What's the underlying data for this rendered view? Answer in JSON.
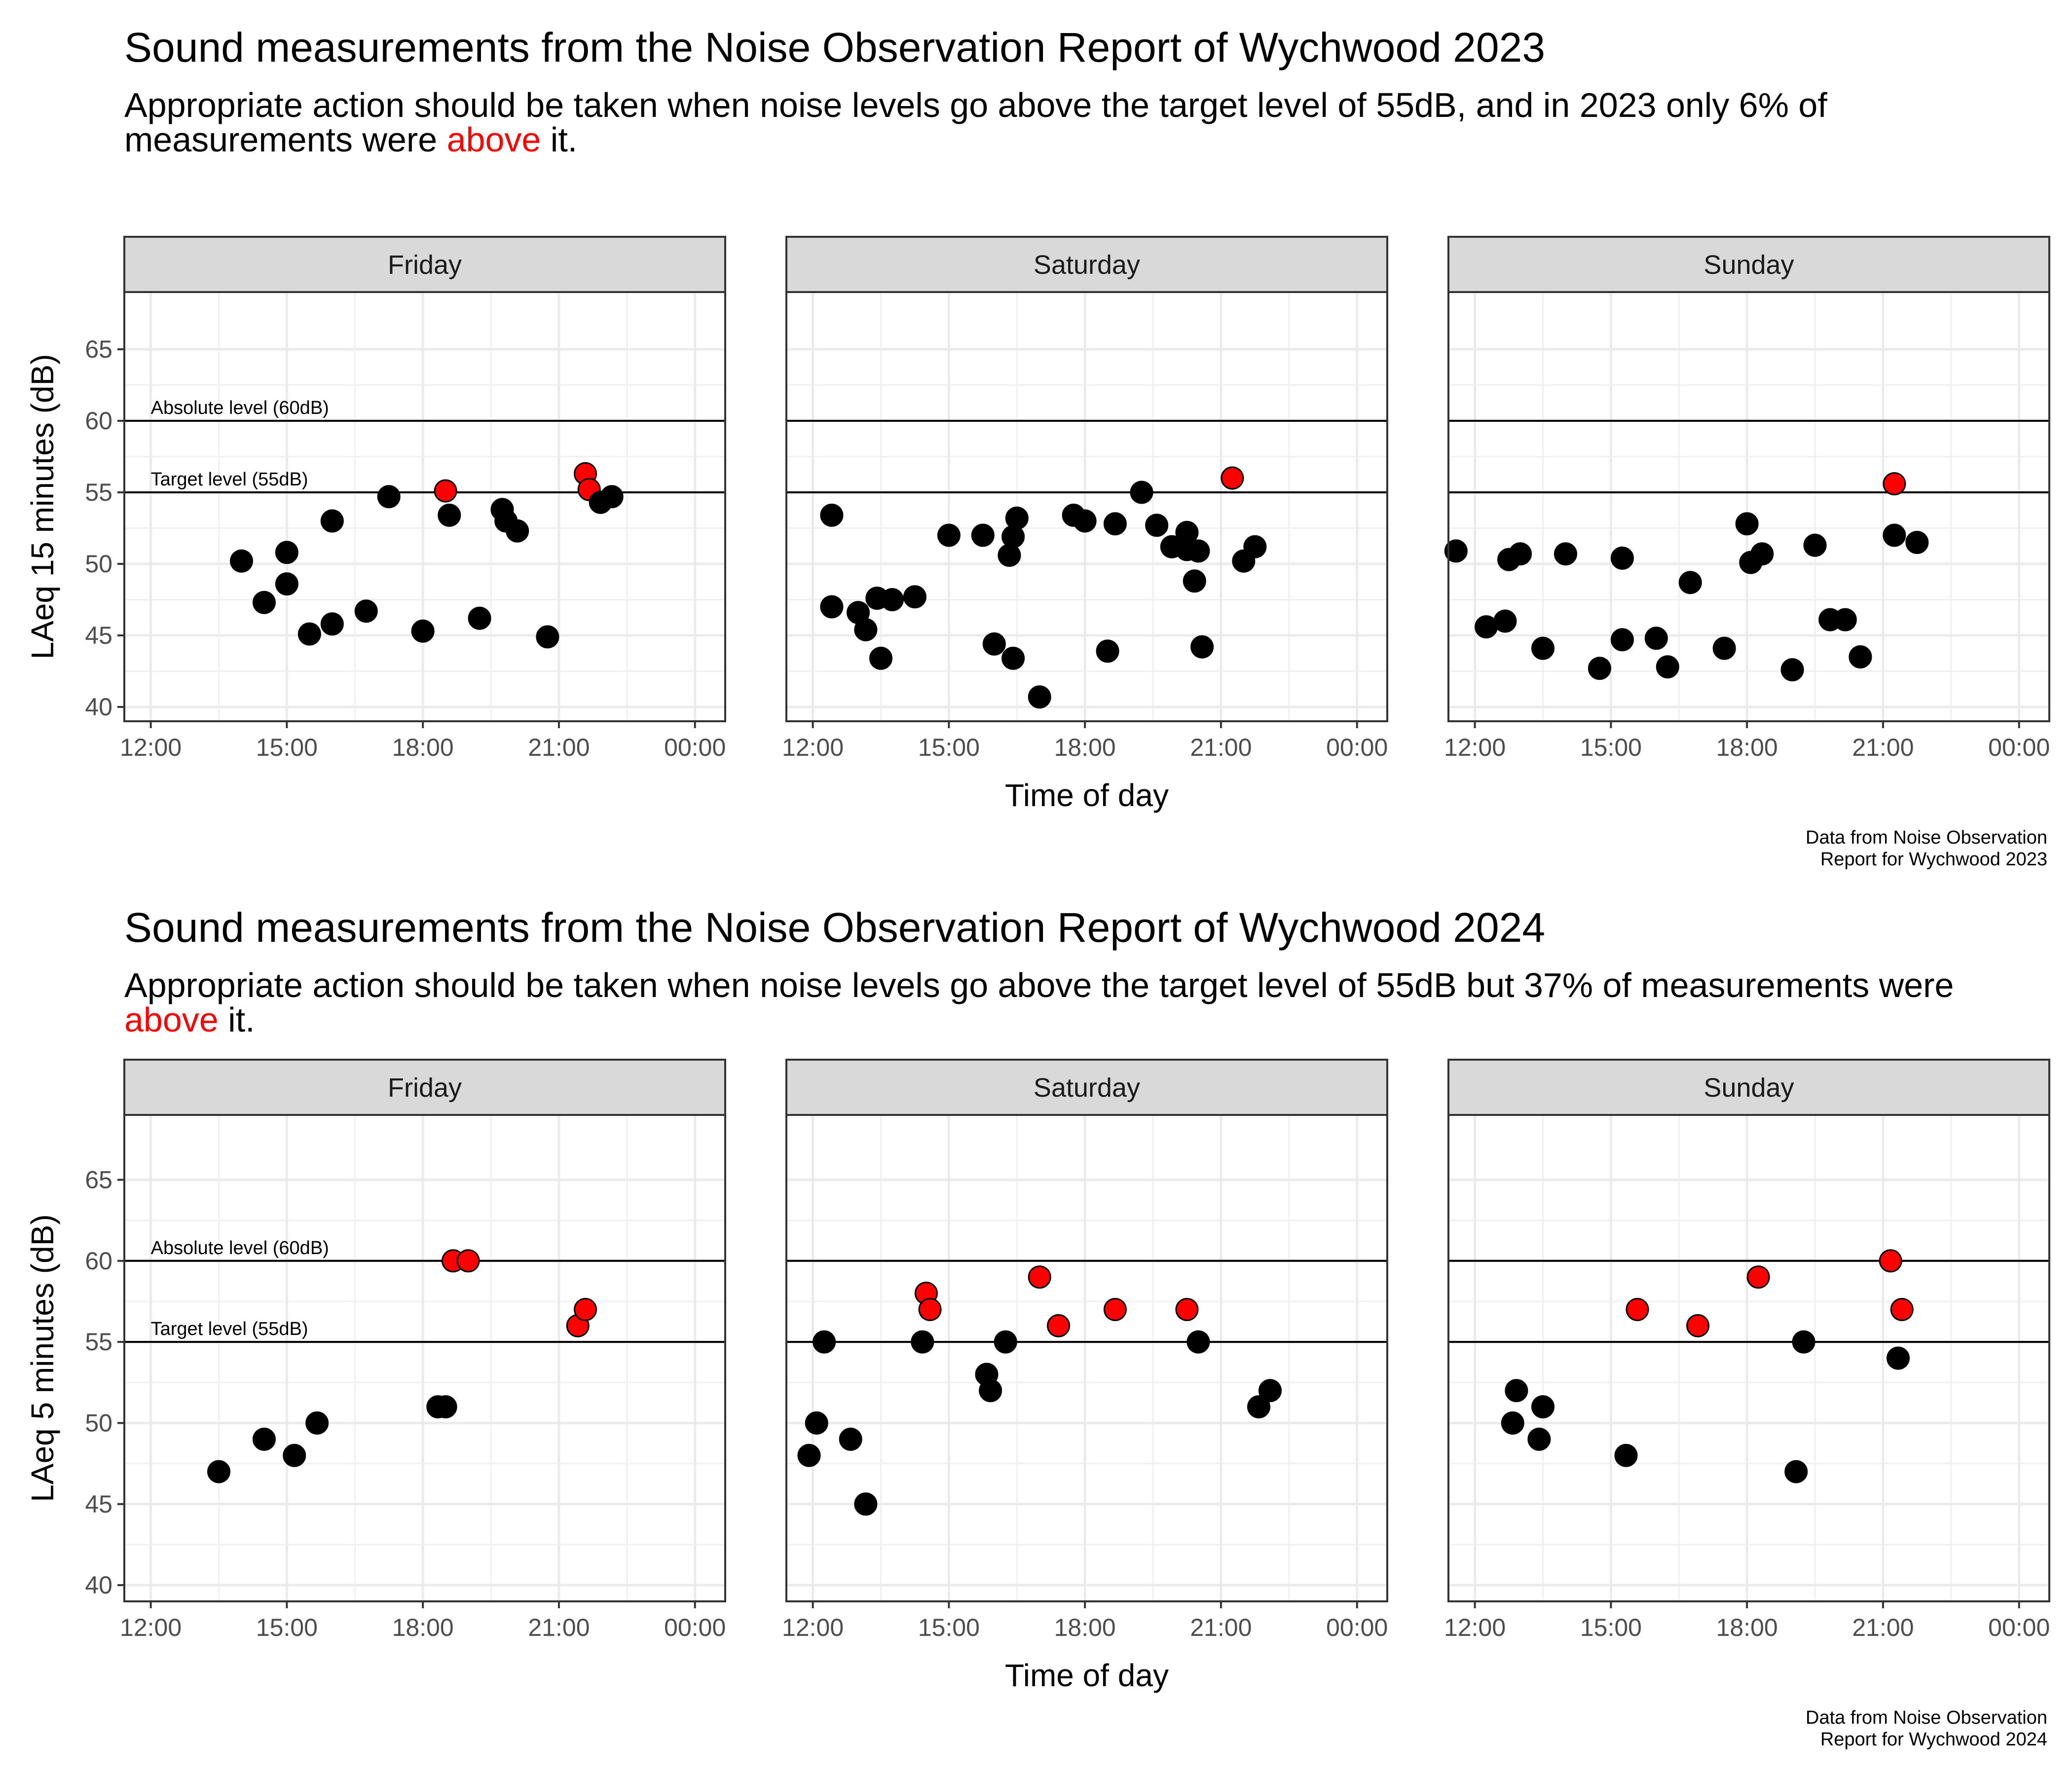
{
  "figures": [
    {
      "title": "Sound measurements from the Noise Observation Report of Wychwood 2023",
      "subtitle_parts": [
        "Appropriate action should be taken when noise levels go above the target level of 55dB, and in 2023 only 6% of measurements were ",
        "above",
        " it."
      ],
      "caption": [
        "Data from Noise Observation",
        "Report for Wychwood 2023"
      ],
      "colors": {
        "above": "#ff0000",
        "below": "#000000",
        "strip_fill": "#d9d9d9"
      }
    },
    {
      "title": "Sound measurements from the Noise Observation Report of Wychwood 2024",
      "subtitle_parts": [
        "Appropriate action should be taken when noise levels go above the target level of 55dB but 37% of measurements were ",
        "above",
        " it."
      ],
      "caption": [
        "Data from Noise Observation",
        "Report for Wychwood 2024"
      ],
      "colors": {
        "above": "#ff0000",
        "below": "#000000",
        "strip_fill": "#d9d9d9"
      }
    }
  ],
  "chart_data": [
    {
      "type": "scatter",
      "facets": [
        "Friday",
        "Saturday",
        "Sunday"
      ],
      "xlabel": "Time of day",
      "ylabel": "LAeq 15 minutes (dB)",
      "x_ticks": [
        "12:00",
        "15:00",
        "18:00",
        "21:00",
        "00:00"
      ],
      "xlim": [
        "11:25",
        "00:40"
      ],
      "y_ticks": [
        40,
        45,
        50,
        55,
        60,
        65
      ],
      "ylim": [
        39,
        69
      ],
      "grid": true,
      "reference_lines": [
        {
          "y": 60,
          "label": "Absolute level (60dB)"
        },
        {
          "y": 55,
          "label": "Target level (55dB)"
        }
      ],
      "series": [
        {
          "name": "Friday",
          "points": [
            [
              "14:00",
              50.2
            ],
            [
              "14:30",
              47.3
            ],
            [
              "15:00",
              50.8
            ],
            [
              "15:00",
              48.6
            ],
            [
              "15:30",
              45.1
            ],
            [
              "16:00",
              53.0
            ],
            [
              "16:00",
              45.8
            ],
            [
              "16:45",
              46.7
            ],
            [
              "17:15",
              54.7
            ],
            [
              "18:00",
              45.3
            ],
            [
              "18:30",
              55.1
            ],
            [
              "18:35",
              53.4
            ],
            [
              "19:15",
              46.2
            ],
            [
              "19:45",
              53.8
            ],
            [
              "19:50",
              53.0
            ],
            [
              "20:05",
              52.3
            ],
            [
              "20:45",
              44.9
            ],
            [
              "21:35",
              56.3
            ],
            [
              "21:40",
              55.2
            ],
            [
              "21:55",
              54.3
            ],
            [
              "22:10",
              54.7
            ]
          ]
        },
        {
          "name": "Saturday",
          "points": [
            [
              "12:25",
              53.4
            ],
            [
              "12:25",
              47.0
            ],
            [
              "13:00",
              46.6
            ],
            [
              "13:10",
              45.4
            ],
            [
              "13:25",
              47.6
            ],
            [
              "13:30",
              43.4
            ],
            [
              "13:45",
              47.5
            ],
            [
              "14:15",
              47.7
            ],
            [
              "15:00",
              52.0
            ],
            [
              "15:45",
              52.0
            ],
            [
              "16:00",
              44.4
            ],
            [
              "16:20",
              50.6
            ],
            [
              "16:25",
              51.9
            ],
            [
              "16:25",
              43.4
            ],
            [
              "16:30",
              53.2
            ],
            [
              "17:00",
              40.7
            ],
            [
              "17:45",
              53.4
            ],
            [
              "18:00",
              53.0
            ],
            [
              "18:30",
              43.9
            ],
            [
              "18:40",
              52.8
            ],
            [
              "19:15",
              55.0
            ],
            [
              "19:35",
              52.7
            ],
            [
              "19:55",
              51.2
            ],
            [
              "20:15",
              51.0
            ],
            [
              "20:15",
              52.2
            ],
            [
              "20:25",
              48.8
            ],
            [
              "20:30",
              50.9
            ],
            [
              "20:35",
              44.2
            ],
            [
              "21:15",
              56.0
            ],
            [
              "21:30",
              50.2
            ],
            [
              "21:45",
              51.2
            ]
          ]
        },
        {
          "name": "Sunday",
          "points": [
            [
              "11:35",
              50.9
            ],
            [
              "12:15",
              45.6
            ],
            [
              "12:40",
              46.0
            ],
            [
              "12:45",
              50.3
            ],
            [
              "13:00",
              50.7
            ],
            [
              "13:30",
              44.1
            ],
            [
              "14:00",
              50.7
            ],
            [
              "14:45",
              42.7
            ],
            [
              "15:15",
              50.4
            ],
            [
              "15:15",
              44.7
            ],
            [
              "16:00",
              44.8
            ],
            [
              "16:15",
              42.8
            ],
            [
              "16:45",
              48.7
            ],
            [
              "17:30",
              44.1
            ],
            [
              "18:00",
              52.8
            ],
            [
              "18:05",
              50.1
            ],
            [
              "18:20",
              50.7
            ],
            [
              "19:00",
              42.6
            ],
            [
              "19:30",
              51.3
            ],
            [
              "19:50",
              46.1
            ],
            [
              "20:10",
              46.1
            ],
            [
              "20:30",
              43.5
            ],
            [
              "21:15",
              55.6
            ],
            [
              "21:15",
              52.0
            ],
            [
              "21:45",
              51.5
            ]
          ]
        }
      ]
    },
    {
      "type": "scatter",
      "facets": [
        "Friday",
        "Saturday",
        "Sunday"
      ],
      "xlabel": "Time of day",
      "ylabel": "LAeq 5 minutes (dB)",
      "x_ticks": [
        "12:00",
        "15:00",
        "18:00",
        "21:00",
        "00:00"
      ],
      "xlim": [
        "11:25",
        "00:40"
      ],
      "y_ticks": [
        40,
        45,
        50,
        55,
        60,
        65
      ],
      "ylim": [
        39,
        69
      ],
      "grid": true,
      "reference_lines": [
        {
          "y": 60,
          "label": "Absolute level (60dB)"
        },
        {
          "y": 55,
          "label": "Target level (55dB)"
        }
      ],
      "series": [
        {
          "name": "Friday",
          "points": [
            [
              "13:30",
              47
            ],
            [
              "14:30",
              49
            ],
            [
              "15:10",
              48
            ],
            [
              "15:40",
              50
            ],
            [
              "18:20",
              51
            ],
            [
              "18:30",
              51
            ],
            [
              "18:40",
              60
            ],
            [
              "19:00",
              60
            ],
            [
              "21:25",
              56
            ],
            [
              "21:35",
              57
            ]
          ]
        },
        {
          "name": "Saturday",
          "points": [
            [
              "11:55",
              48
            ],
            [
              "12:05",
              50
            ],
            [
              "12:15",
              55
            ],
            [
              "12:50",
              49
            ],
            [
              "13:10",
              45
            ],
            [
              "14:25",
              55
            ],
            [
              "14:30",
              58
            ],
            [
              "14:35",
              57
            ],
            [
              "15:50",
              53
            ],
            [
              "15:55",
              52
            ],
            [
              "16:15",
              55
            ],
            [
              "17:00",
              59
            ],
            [
              "17:25",
              56
            ],
            [
              "18:40",
              57
            ],
            [
              "20:15",
              57
            ],
            [
              "20:30",
              55
            ],
            [
              "21:50",
              51
            ],
            [
              "22:05",
              52
            ]
          ]
        },
        {
          "name": "Sunday",
          "points": [
            [
              "12:50",
              50
            ],
            [
              "12:55",
              52
            ],
            [
              "13:25",
              49
            ],
            [
              "13:30",
              51
            ],
            [
              "15:20",
              48
            ],
            [
              "15:35",
              57
            ],
            [
              "16:55",
              56
            ],
            [
              "18:15",
              59
            ],
            [
              "19:05",
              47
            ],
            [
              "19:15",
              55
            ],
            [
              "21:10",
              60
            ],
            [
              "21:20",
              54
            ],
            [
              "21:25",
              57
            ]
          ]
        }
      ]
    }
  ]
}
